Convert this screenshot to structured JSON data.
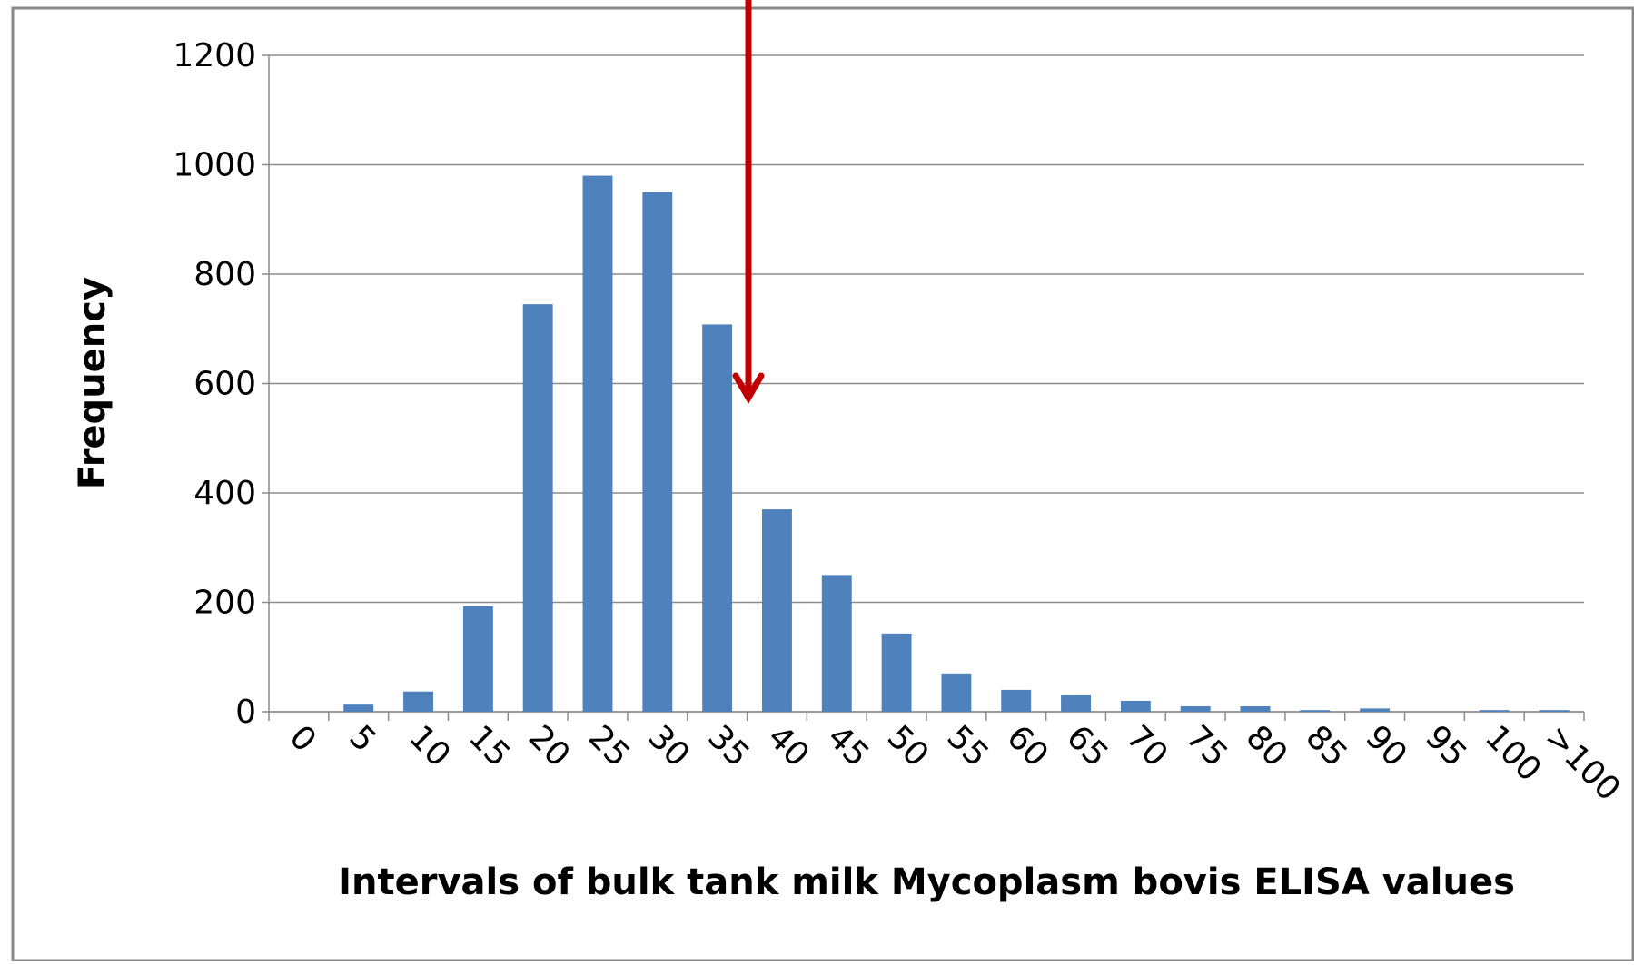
{
  "chart_data": {
    "type": "bar",
    "xlabel": "Intervals of bulk tank milk Mycoplasm bovis ELISA values",
    "ylabel": "Frequency",
    "categories": [
      "0",
      "5",
      "10",
      "15",
      "20",
      "25",
      "30",
      "35",
      "40",
      "45",
      "50",
      "55",
      "60",
      "65",
      "70",
      "75",
      "80",
      "85",
      "90",
      "95",
      "100",
      ">100"
    ],
    "values": [
      0,
      13,
      37,
      193,
      745,
      980,
      950,
      708,
      370,
      250,
      143,
      70,
      40,
      30,
      20,
      10,
      10,
      3,
      6,
      0,
      3,
      3
    ],
    "color": "#4f81bd",
    "ylim": [
      0,
      1200
    ],
    "yticks": [
      0,
      200,
      400,
      600,
      800,
      1000,
      1200
    ],
    "grid": true
  }
}
